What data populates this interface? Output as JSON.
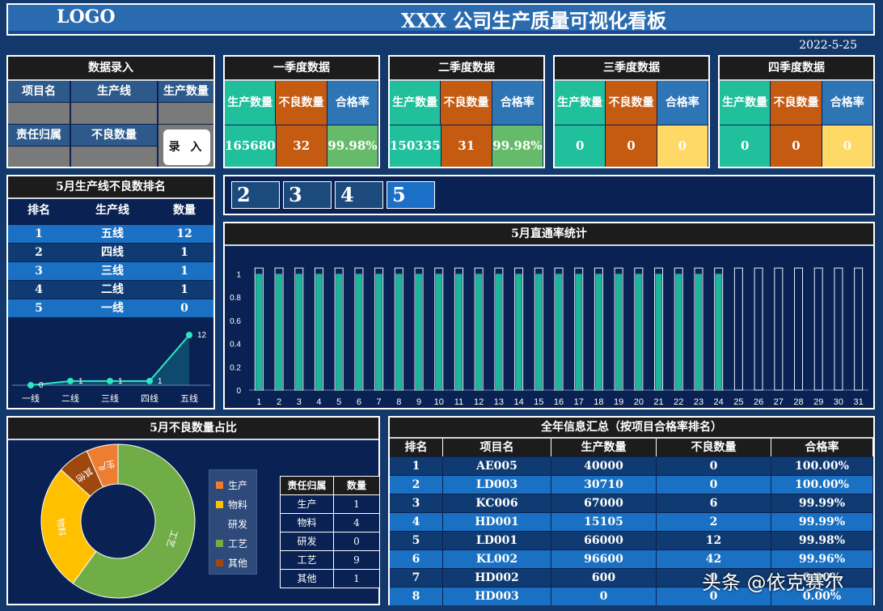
{
  "header": {
    "logo": "LOGO",
    "title": "XXX 公司生产质量可视化看板",
    "date": "2022-5-25"
  },
  "entry": {
    "title": "数据录入",
    "col_item": "项目名",
    "col_line": "生产线",
    "col_qty": "生产数量",
    "col_owner": "责任归属",
    "col_defect": "不良数量",
    "button": "录 入"
  },
  "quarters": [
    {
      "title": "一季度数据",
      "h1": "生产数量",
      "h2": "不良数量",
      "h3": "合格率",
      "v1": "165680",
      "v2": "32",
      "v3": "99.98%"
    },
    {
      "title": "二季度数据",
      "h1": "生产数量",
      "h2": "不良数量",
      "h3": "合格率",
      "v1": "150335",
      "v2": "31",
      "v3": "99.98%"
    },
    {
      "title": "三季度数据",
      "h1": "生产数量",
      "h2": "不良数量",
      "h3": "合格率",
      "v1": "0",
      "v2": "0",
      "v3": "0"
    },
    {
      "title": "四季度数据",
      "h1": "生产数量",
      "h2": "不良数量",
      "h3": "合格率",
      "v1": "0",
      "v2": "0",
      "v3": "0"
    }
  ],
  "ranking": {
    "title": "5月生产线不良数排名",
    "headers": [
      "排名",
      "生产线",
      "数量"
    ],
    "rows": [
      [
        "1",
        "五线",
        "12"
      ],
      [
        "2",
        "四线",
        "1"
      ],
      [
        "3",
        "三线",
        "1"
      ],
      [
        "4",
        "二线",
        "1"
      ],
      [
        "5",
        "一线",
        "0"
      ]
    ]
  },
  "trend_chart": {
    "type": "area",
    "categories": [
      "一线",
      "二线",
      "三线",
      "四线",
      "五线"
    ],
    "values": [
      0,
      1,
      1,
      1,
      12
    ]
  },
  "month_tabs": [
    "2",
    "3",
    "4",
    "5"
  ],
  "yield_chart": {
    "title": "5月直通率统计",
    "type": "bar",
    "categories": [
      "1",
      "2",
      "3",
      "4",
      "5",
      "6",
      "7",
      "8",
      "9",
      "10",
      "11",
      "12",
      "13",
      "14",
      "15",
      "16",
      "17",
      "18",
      "19",
      "20",
      "21",
      "22",
      "23",
      "24",
      "25",
      "26",
      "27",
      "28",
      "29",
      "30",
      "31"
    ],
    "values": [
      1,
      1,
      1,
      1,
      1,
      1,
      1,
      1,
      1,
      1,
      1,
      1,
      1,
      1,
      1,
      1,
      1,
      1,
      1,
      1,
      1,
      1,
      1,
      1,
      0,
      0,
      0,
      0,
      0,
      0,
      0
    ],
    "yticks": [
      "0",
      "0.2",
      "0.4",
      "0.6",
      "0.8",
      "1"
    ],
    "ylim": [
      0,
      1.1
    ]
  },
  "pie_chart": {
    "title": "5月不良数量占比",
    "type": "pie",
    "labels": [
      "生产",
      "物料",
      "研发",
      "工艺",
      "其他"
    ],
    "values": [
      1,
      4,
      0,
      9,
      1
    ],
    "colors": [
      "#ed7d31",
      "#ffc000",
      "#4472c4",
      "#70ad47",
      "#9e480e"
    ],
    "legend": [
      "生产",
      "物料",
      "研发",
      "工艺",
      "其他"
    ]
  },
  "owner_table": {
    "headers": [
      "责任归属",
      "数量"
    ],
    "rows": [
      [
        "生产",
        "1"
      ],
      [
        "物料",
        "4"
      ],
      [
        "研发",
        "0"
      ],
      [
        "工艺",
        "9"
      ],
      [
        "其他",
        "1"
      ]
    ]
  },
  "annual": {
    "title": "全年信息汇总（按项目合格率排名）",
    "headers": [
      "排名",
      "项目名",
      "生产数量",
      "不良数量",
      "合格率"
    ],
    "rows": [
      [
        "1",
        "AE005",
        "40000",
        "0",
        "100.00%"
      ],
      [
        "2",
        "LD003",
        "30710",
        "0",
        "100.00%"
      ],
      [
        "3",
        "KC006",
        "67000",
        "6",
        "99.99%"
      ],
      [
        "4",
        "HD001",
        "15105",
        "2",
        "99.99%"
      ],
      [
        "5",
        "LD001",
        "66000",
        "12",
        "99.98%"
      ],
      [
        "6",
        "KL002",
        "96600",
        "42",
        "99.96%"
      ],
      [
        "7",
        "HD002",
        "600",
        "0",
        "0.00%"
      ],
      [
        "8",
        "HD003",
        "0",
        "0",
        "0.00%"
      ]
    ]
  },
  "watermark": "头条 @依克赛尔"
}
